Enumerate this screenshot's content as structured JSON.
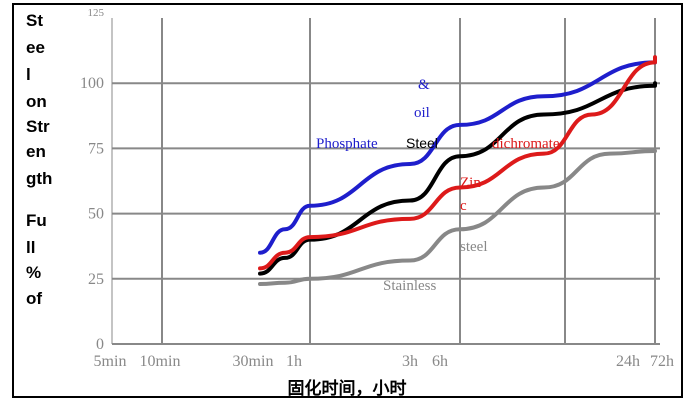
{
  "chart_data": {
    "type": "line",
    "ylabel_lines": [
      "St",
      "ee",
      "l",
      "on",
      "Str",
      "en",
      "gth",
      "Fu",
      "ll",
      "%",
      "of"
    ],
    "xlabel": "固化时间，小时",
    "ylim": [
      0,
      125
    ],
    "yticks": [
      "0",
      "25",
      "50",
      "75",
      "100",
      "125"
    ],
    "xtick_labels": [
      "5min",
      "10min",
      "30min",
      "1h",
      "3h",
      "6h",
      "24h",
      "72h"
    ],
    "x_categories": [
      "5min",
      "10min",
      "30min",
      "1h",
      "3h",
      "6h",
      "24h",
      "72h"
    ],
    "grid": true,
    "series": [
      {
        "name": "Phosphate & oil",
        "color": "#1e1ecc",
        "points": [
          [
            2,
            35
          ],
          [
            2.5,
            44
          ],
          [
            3,
            53
          ],
          [
            4,
            69
          ],
          [
            5,
            84
          ],
          [
            5.8,
            95
          ],
          [
            7,
            108
          ],
          [
            8,
            108
          ]
        ]
      },
      {
        "name": "Steel",
        "color": "#000000",
        "points": [
          [
            2,
            27
          ],
          [
            2.5,
            33
          ],
          [
            3,
            40
          ],
          [
            4,
            55
          ],
          [
            5,
            72
          ],
          [
            5.8,
            88
          ],
          [
            7,
            99
          ],
          [
            8,
            100
          ]
        ]
      },
      {
        "name": "Zinc dichromate",
        "color": "#dd1a1a",
        "points": [
          [
            2,
            29
          ],
          [
            2.5,
            35
          ],
          [
            3,
            41
          ],
          [
            4,
            48
          ],
          [
            5,
            60
          ],
          [
            5.8,
            73
          ],
          [
            6.3,
            88
          ],
          [
            7,
            108
          ],
          [
            8,
            110
          ]
        ]
      },
      {
        "name": "Stainless steel",
        "color": "#888888",
        "points": [
          [
            2,
            23
          ],
          [
            2.5,
            23.5
          ],
          [
            3,
            25
          ],
          [
            4,
            32
          ],
          [
            5,
            44
          ],
          [
            5.8,
            60
          ],
          [
            6.5,
            73
          ],
          [
            8,
            74
          ]
        ]
      }
    ],
    "annotations": [
      "&",
      "oil",
      "Phosphate",
      "Steel",
      "dichromate",
      "Zin",
      "c",
      "steel",
      "Stainless"
    ]
  }
}
